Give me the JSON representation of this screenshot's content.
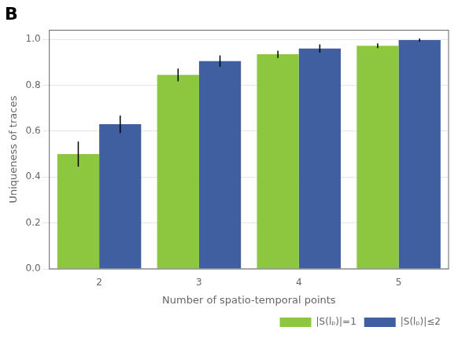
{
  "chart_data": {
    "type": "bar",
    "title": "B",
    "xlabel": "Number of spatio-temporal points",
    "ylabel": "Uniqueness of traces",
    "categories": [
      2,
      3,
      4,
      5
    ],
    "series": [
      {
        "name": "|S(lₚ)|=1",
        "color": "#8DC63F",
        "values": [
          0.5,
          0.845,
          0.935,
          0.972
        ],
        "errors": [
          0.055,
          0.028,
          0.016,
          0.01
        ]
      },
      {
        "name": "|S(lₚ)|≤2",
        "color": "#3F5FA0",
        "values": [
          0.63,
          0.905,
          0.96,
          0.997
        ],
        "errors": [
          0.038,
          0.025,
          0.018,
          0.007
        ]
      }
    ],
    "ylim": [
      0.0,
      1.04
    ],
    "yticks": [
      {
        "value": 0.0,
        "label": "0.0"
      },
      0.2,
      0.4,
      0.6,
      0.8,
      {
        "value": 1.0,
        "label": "1.0"
      }
    ],
    "grid": true,
    "legend": "lower right"
  }
}
